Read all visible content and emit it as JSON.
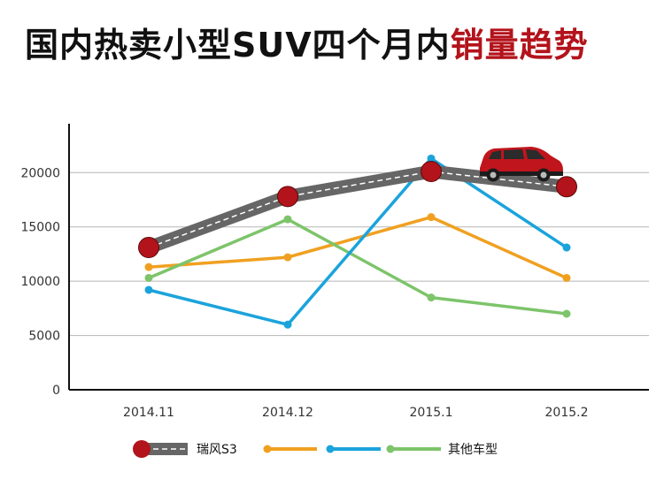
{
  "title": {
    "main": "国内热卖小型SUV四个月内",
    "highlight": "销量趋势"
  },
  "colors": {
    "accent": "#b3131b",
    "ruifeng": "#666666",
    "orange": "#f0a020",
    "blue": "#1ba3dc",
    "green": "#7dc46a",
    "grid": "#b5b5b5",
    "axis": "#111111"
  },
  "chart_data": {
    "type": "line",
    "title": "国内热卖小型SUV四个月内销量趋势",
    "categories": [
      "2014.11",
      "2014.12",
      "2015.1",
      "2015.2"
    ],
    "y_ticks": [
      0,
      5000,
      10000,
      15000,
      20000
    ],
    "ylim": [
      0,
      24500
    ],
    "grid": true,
    "series": [
      {
        "key": "ruifeng",
        "name": "瑞风S3",
        "values": [
          13100,
          17800,
          20100,
          18700
        ]
      },
      {
        "key": "orange",
        "name": "",
        "values": [
          11300,
          12200,
          15900,
          10300
        ]
      },
      {
        "key": "blue",
        "name": "",
        "values": [
          9200,
          6000,
          21300,
          13100
        ]
      },
      {
        "key": "green",
        "name": "其他车型",
        "values": [
          10300,
          15700,
          8500,
          7000
        ]
      }
    ]
  }
}
